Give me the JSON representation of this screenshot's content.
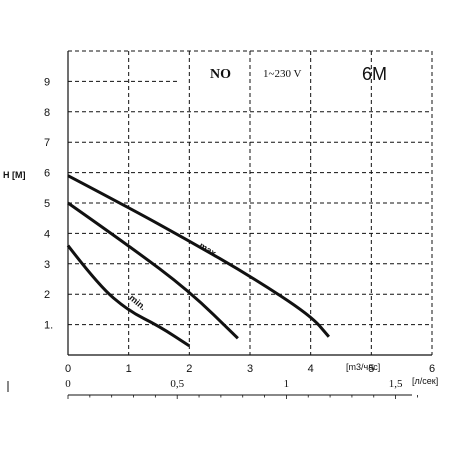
{
  "chart_data": {
    "type": "line",
    "title": "NO",
    "subtitle": "1~230 V",
    "model": "6M",
    "ylabel": "H [M]",
    "xlabel": "[m3/час]",
    "xlabel_secondary": "[л/сек]",
    "xlim": [
      0,
      6
    ],
    "ylim": [
      0,
      10
    ],
    "grid": true,
    "x_ticks": [
      "0",
      "1",
      "2",
      "3",
      "4",
      "5",
      "6"
    ],
    "y_ticks": [
      "1.",
      "2",
      "3",
      "4",
      "5",
      "6",
      "7",
      "8",
      "9"
    ],
    "x2_ticks": [
      {
        "label": "0",
        "value": 0
      },
      {
        "label": "0,5",
        "value": 0.5
      },
      {
        "label": "1",
        "value": 1
      },
      {
        "label": "1,5",
        "value": 1.5
      }
    ],
    "series": [
      {
        "name": "max.",
        "points": [
          [
            0,
            5.9
          ],
          [
            1,
            4.85
          ],
          [
            2,
            3.75
          ],
          [
            3,
            2.6
          ],
          [
            4,
            1.3
          ],
          [
            4.3,
            0.6
          ]
        ]
      },
      {
        "name": "",
        "points": [
          [
            0,
            5.0
          ],
          [
            1,
            3.6
          ],
          [
            2,
            2.1
          ],
          [
            2.8,
            0.55
          ]
        ]
      },
      {
        "name": "min.",
        "points": [
          [
            0,
            3.6
          ],
          [
            0.5,
            2.3
          ],
          [
            1,
            1.45
          ],
          [
            1.5,
            0.95
          ],
          [
            2.0,
            0.3
          ]
        ]
      }
    ]
  }
}
